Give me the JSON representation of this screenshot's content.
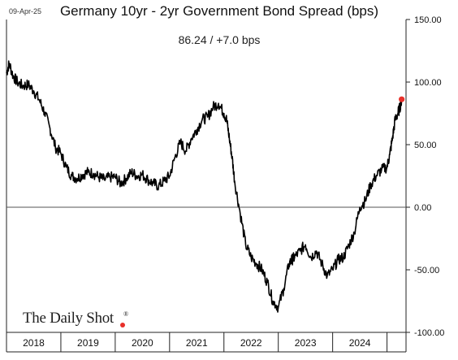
{
  "header": {
    "date": "09-Apr-25",
    "title": "Germany 10yr - 2yr Government Bond Spread (bps)",
    "subtitle": "86.24  /  +7.0 bps"
  },
  "watermark": {
    "text": "The Daily Shot",
    "reg": "®",
    "dot_color": "#e8302a"
  },
  "chart_data": {
    "type": "line",
    "title": "Germany 10yr - 2yr Government Bond Spread (bps)",
    "xlabel": "",
    "ylabel": "",
    "xlim": [
      2018.0,
      2025.35
    ],
    "ylim": [
      -100,
      150
    ],
    "y_ticks": [
      150,
      100,
      50,
      0,
      -50,
      -100
    ],
    "y_tick_labels": [
      "150.00",
      "100.00",
      "50.00",
      "0.00",
      "-50.00",
      "-100.00"
    ],
    "x_tick_labels": [
      "2018",
      "2019",
      "2020",
      "2021",
      "2022",
      "2023",
      "2024"
    ],
    "x_tick_positions": [
      2018.5,
      2019.5,
      2020.5,
      2021.5,
      2022.5,
      2023.5,
      2024.5
    ],
    "grid": false,
    "legend": "none",
    "line_color": "#000000",
    "marker_color": "#e8302a",
    "last_value": 86.24,
    "series": [
      {
        "x": [
          2018.0,
          2018.05,
          2018.12,
          2018.2,
          2018.3,
          2018.4,
          2018.5,
          2018.6,
          2018.7,
          2018.8,
          2018.9,
          2019.0,
          2019.1,
          2019.2,
          2019.3,
          2019.4,
          2019.5,
          2019.6,
          2019.7,
          2019.8,
          2019.9,
          2020.0,
          2020.1,
          2020.2,
          2020.3,
          2020.4,
          2020.5,
          2020.6,
          2020.7,
          2020.8,
          2020.9,
          2021.0,
          2021.1,
          2021.2,
          2021.3,
          2021.4,
          2021.5,
          2021.6,
          2021.7,
          2021.8,
          2021.9,
          2022.0,
          2022.05,
          2022.1,
          2022.15,
          2022.2,
          2022.3,
          2022.4,
          2022.5,
          2022.6,
          2022.7,
          2022.8,
          2022.9,
          2023.0,
          2023.1,
          2023.2,
          2023.25,
          2023.3,
          2023.4,
          2023.5,
          2023.6,
          2023.7,
          2023.8,
          2023.9,
          2024.0,
          2024.1,
          2024.2,
          2024.3,
          2024.4,
          2024.5,
          2024.6,
          2024.7,
          2024.8,
          2024.9,
          2025.0,
          2025.05,
          2025.1,
          2025.15,
          2025.2,
          2025.24,
          2025.27
        ],
        "y": [
          107,
          115,
          105,
          100,
          97,
          98,
          93,
          86,
          76,
          63,
          48,
          43,
          32,
          25,
          23,
          26,
          28,
          27,
          24,
          22,
          24,
          24,
          19,
          23,
          28,
          25,
          26,
          22,
          19,
          17,
          21,
          25,
          40,
          52,
          45,
          55,
          62,
          70,
          72,
          80,
          83,
          75,
          70,
          55,
          40,
          20,
          -5,
          -30,
          -40,
          -45,
          -50,
          -60,
          -75,
          -80,
          -65,
          -45,
          -42,
          -40,
          -35,
          -30,
          -40,
          -35,
          -45,
          -55,
          -50,
          -42,
          -40,
          -30,
          -20,
          0,
          5,
          18,
          25,
          30,
          32,
          42,
          55,
          70,
          75,
          80,
          86.24
        ]
      }
    ]
  }
}
